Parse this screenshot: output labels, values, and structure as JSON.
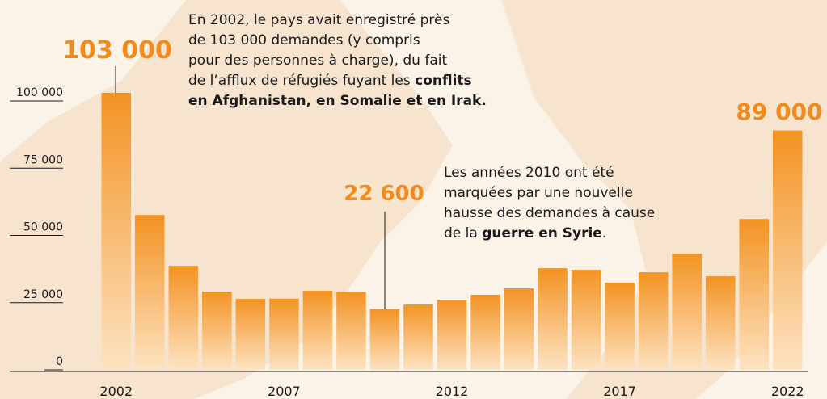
{
  "chart_data": {
    "type": "bar",
    "categories": [
      "2002",
      null,
      null,
      null,
      null,
      "2007",
      null,
      null,
      null,
      null,
      "2012",
      null,
      null,
      null,
      null,
      "2017",
      null,
      null,
      null,
      null,
      "2022"
    ],
    "values": [
      103000,
      57600,
      38700,
      29100,
      26400,
      26500,
      29400,
      29000,
      22600,
      24300,
      26100,
      27900,
      30300,
      37800,
      37200,
      32400,
      36300,
      43200,
      34800,
      56100,
      89000
    ],
    "value_labels": [
      "103 000",
      null,
      null,
      null,
      null,
      null,
      null,
      null,
      "22 600",
      null,
      null,
      null,
      null,
      null,
      null,
      null,
      null,
      null,
      null,
      null,
      "89 000"
    ],
    "color": "#f39323",
    "ylim": [
      0,
      100000
    ],
    "yticks": [
      0,
      {
        "value": 25000,
        "label": "25 000"
      },
      {
        "value": 50000,
        "label": "50 000"
      },
      {
        "value": 75000,
        "label": "75 000"
      },
      {
        "value": 100000,
        "label": "100 000"
      }
    ],
    "annotations": [
      {
        "lines": [
          [
            {
              "text": "En 2002, le pays avait enregistré près"
            }
          ],
          [
            {
              "text": "de 103 000 demandes (y compris"
            }
          ],
          [
            {
              "text": "pour des personnes à charge), du fait"
            }
          ],
          [
            {
              "text": "de l’afflux de réfugiés fuyant les "
            },
            {
              "text": "conflits",
              "bold": true
            }
          ],
          [
            {
              "text": "en Afghanistan, en Somalie et en Irak.",
              "bold": true
            }
          ]
        ]
      },
      {
        "lines": [
          [
            {
              "text": "Les années 2010 ont été"
            }
          ],
          [
            {
              "text": "marquées par une nouvelle"
            }
          ],
          [
            {
              "text": "hausse des demandes à cause"
            }
          ],
          [
            {
              "text": "de la "
            },
            {
              "text": "guerre en Syrie",
              "bold": true
            },
            {
              "text": "."
            }
          ]
        ]
      }
    ]
  }
}
